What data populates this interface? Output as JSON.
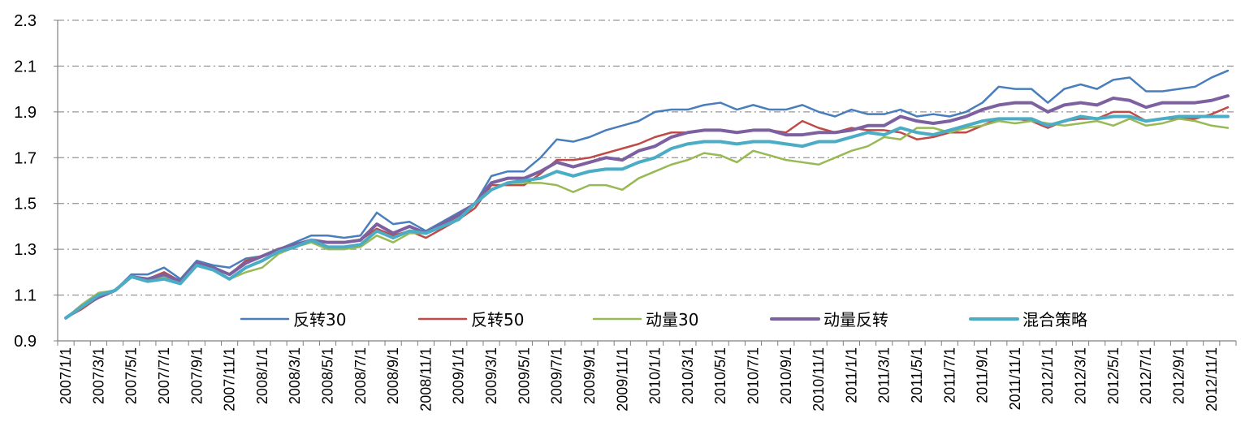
{
  "chart_data": {
    "type": "line",
    "title": "",
    "xlabel": "",
    "ylabel": "",
    "ylim": [
      0.9,
      2.3
    ],
    "yticks": [
      "0.9",
      "1.1",
      "1.3",
      "1.5",
      "1.7",
      "1.9",
      "2.1",
      "2.3"
    ],
    "grid": "horizontal dash-dot",
    "legend_position": "bottom-center inside plot",
    "x": [
      "2007/1/1",
      "2007/2/1",
      "2007/3/1",
      "2007/4/1",
      "2007/5/1",
      "2007/6/1",
      "2007/7/1",
      "2007/8/1",
      "2007/9/1",
      "2007/10/1",
      "2007/11/1",
      "2007/12/1",
      "2008/1/1",
      "2008/2/1",
      "2008/3/1",
      "2008/4/1",
      "2008/5/1",
      "2008/6/1",
      "2008/7/1",
      "2008/8/1",
      "2008/9/1",
      "2008/10/1",
      "2008/11/1",
      "2008/12/1",
      "2009/1/1",
      "2009/2/1",
      "2009/3/1",
      "2009/4/1",
      "2009/5/1",
      "2009/6/1",
      "2009/7/1",
      "2009/8/1",
      "2009/9/1",
      "2009/10/1",
      "2009/11/1",
      "2009/12/1",
      "2010/1/1",
      "2010/2/1",
      "2010/3/1",
      "2010/4/1",
      "2010/5/1",
      "2010/6/1",
      "2010/7/1",
      "2010/8/1",
      "2010/9/1",
      "2010/10/1",
      "2010/11/1",
      "2010/12/1",
      "2011/1/1",
      "2011/2/1",
      "2011/3/1",
      "2011/4/1",
      "2011/5/1",
      "2011/6/1",
      "2011/7/1",
      "2011/8/1",
      "2011/9/1",
      "2011/10/1",
      "2011/11/1",
      "2011/12/1",
      "2012/1/1",
      "2012/2/1",
      "2012/3/1",
      "2012/4/1",
      "2012/5/1",
      "2012/6/1",
      "2012/7/1",
      "2012/8/1",
      "2012/9/1",
      "2012/10/1",
      "2012/11/1",
      "2012/12/1"
    ],
    "series": [
      {
        "name": "反转30",
        "color": "#4a7ebb",
        "width": 2.5,
        "values": [
          1.0,
          1.05,
          1.1,
          1.12,
          1.19,
          1.19,
          1.22,
          1.17,
          1.25,
          1.23,
          1.22,
          1.26,
          1.27,
          1.3,
          1.33,
          1.36,
          1.36,
          1.35,
          1.36,
          1.46,
          1.41,
          1.42,
          1.38,
          1.42,
          1.46,
          1.5,
          1.62,
          1.64,
          1.64,
          1.7,
          1.78,
          1.77,
          1.79,
          1.82,
          1.84,
          1.86,
          1.9,
          1.91,
          1.91,
          1.93,
          1.94,
          1.91,
          1.93,
          1.91,
          1.91,
          1.93,
          1.9,
          1.88,
          1.91,
          1.89,
          1.89,
          1.91,
          1.88,
          1.89,
          1.88,
          1.9,
          1.94,
          2.01,
          2.0,
          2.0,
          1.94,
          2.0,
          2.02,
          2.0,
          2.04,
          2.05,
          1.99,
          1.99,
          2.0,
          2.01,
          2.05,
          2.08
        ]
      },
      {
        "name": "反转50",
        "color": "#be4b48",
        "width": 2.5,
        "values": [
          1.0,
          1.04,
          1.09,
          1.12,
          1.18,
          1.17,
          1.2,
          1.16,
          1.24,
          1.22,
          1.19,
          1.25,
          1.27,
          1.3,
          1.32,
          1.33,
          1.33,
          1.33,
          1.34,
          1.39,
          1.36,
          1.38,
          1.35,
          1.39,
          1.43,
          1.48,
          1.58,
          1.58,
          1.58,
          1.63,
          1.69,
          1.69,
          1.7,
          1.72,
          1.74,
          1.76,
          1.79,
          1.81,
          1.81,
          1.82,
          1.82,
          1.81,
          1.82,
          1.82,
          1.81,
          1.86,
          1.83,
          1.81,
          1.83,
          1.82,
          1.82,
          1.81,
          1.78,
          1.79,
          1.81,
          1.81,
          1.84,
          1.87,
          1.87,
          1.86,
          1.83,
          1.86,
          1.87,
          1.87,
          1.9,
          1.9,
          1.86,
          1.87,
          1.87,
          1.87,
          1.89,
          1.92
        ]
      },
      {
        "name": "动量30",
        "color": "#98b954",
        "width": 2.5,
        "values": [
          1.0,
          1.06,
          1.11,
          1.12,
          1.18,
          1.16,
          1.18,
          1.15,
          1.23,
          1.21,
          1.17,
          1.2,
          1.22,
          1.28,
          1.31,
          1.33,
          1.3,
          1.3,
          1.31,
          1.36,
          1.33,
          1.37,
          1.37,
          1.4,
          1.44,
          1.5,
          1.56,
          1.59,
          1.59,
          1.59,
          1.58,
          1.55,
          1.58,
          1.58,
          1.56,
          1.61,
          1.64,
          1.67,
          1.69,
          1.72,
          1.71,
          1.68,
          1.73,
          1.71,
          1.69,
          1.68,
          1.67,
          1.7,
          1.73,
          1.75,
          1.79,
          1.78,
          1.83,
          1.83,
          1.81,
          1.83,
          1.84,
          1.86,
          1.85,
          1.86,
          1.85,
          1.84,
          1.85,
          1.86,
          1.84,
          1.87,
          1.84,
          1.85,
          1.87,
          1.86,
          1.84,
          1.83
        ]
      },
      {
        "name": "动量反转",
        "color": "#7d60a0",
        "width": 4,
        "values": [
          1.0,
          1.05,
          1.09,
          1.12,
          1.18,
          1.17,
          1.19,
          1.16,
          1.24,
          1.22,
          1.19,
          1.24,
          1.27,
          1.3,
          1.32,
          1.34,
          1.33,
          1.33,
          1.34,
          1.41,
          1.37,
          1.4,
          1.37,
          1.41,
          1.45,
          1.5,
          1.59,
          1.61,
          1.61,
          1.64,
          1.68,
          1.66,
          1.68,
          1.7,
          1.69,
          1.73,
          1.75,
          1.79,
          1.81,
          1.82,
          1.82,
          1.81,
          1.82,
          1.82,
          1.8,
          1.8,
          1.81,
          1.81,
          1.82,
          1.84,
          1.84,
          1.88,
          1.86,
          1.85,
          1.86,
          1.88,
          1.91,
          1.93,
          1.94,
          1.94,
          1.9,
          1.93,
          1.94,
          1.93,
          1.96,
          1.95,
          1.92,
          1.94,
          1.94,
          1.94,
          1.95,
          1.97
        ]
      },
      {
        "name": "混合策略",
        "color": "#4bacc6",
        "width": 4,
        "values": [
          1.0,
          1.05,
          1.1,
          1.12,
          1.18,
          1.16,
          1.17,
          1.15,
          1.23,
          1.21,
          1.17,
          1.22,
          1.25,
          1.29,
          1.31,
          1.34,
          1.31,
          1.31,
          1.32,
          1.38,
          1.35,
          1.38,
          1.37,
          1.4,
          1.43,
          1.5,
          1.56,
          1.59,
          1.6,
          1.61,
          1.64,
          1.62,
          1.64,
          1.65,
          1.65,
          1.68,
          1.7,
          1.74,
          1.76,
          1.77,
          1.77,
          1.76,
          1.77,
          1.77,
          1.76,
          1.75,
          1.77,
          1.77,
          1.79,
          1.81,
          1.8,
          1.83,
          1.81,
          1.8,
          1.82,
          1.84,
          1.86,
          1.87,
          1.87,
          1.87,
          1.84,
          1.86,
          1.88,
          1.87,
          1.88,
          1.88,
          1.86,
          1.87,
          1.88,
          1.88,
          1.88,
          1.88
        ]
      }
    ]
  }
}
